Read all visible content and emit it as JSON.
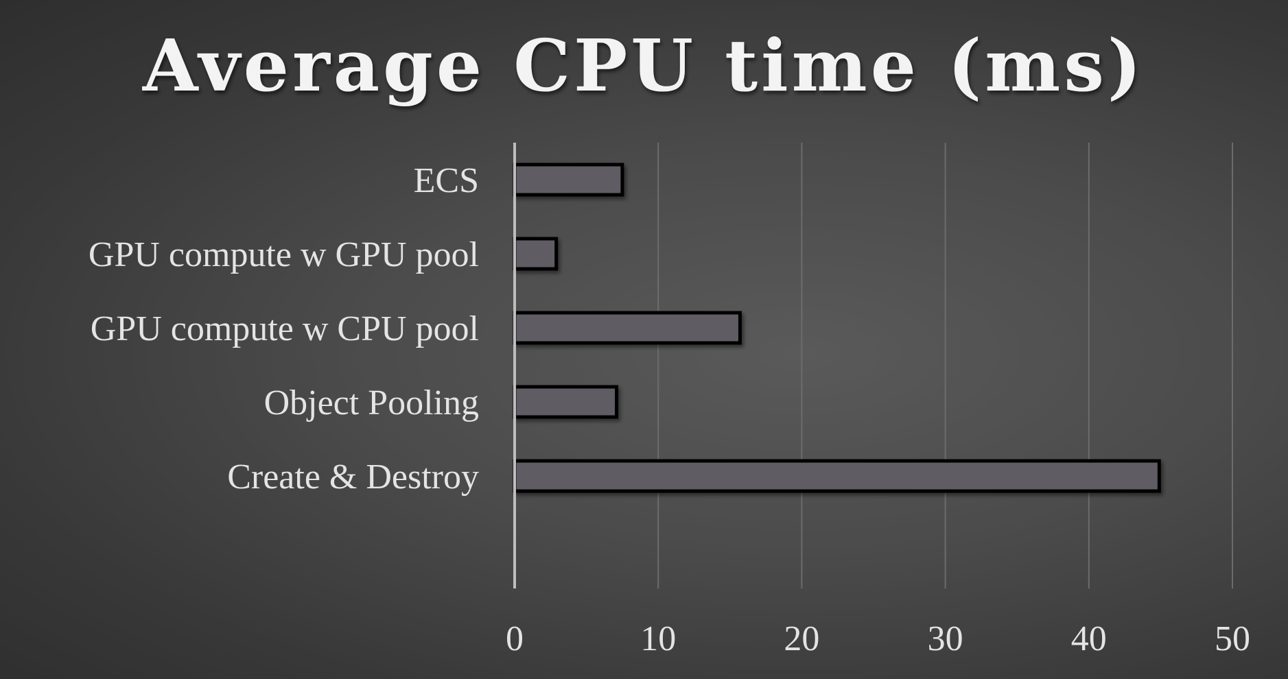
{
  "chart_data": {
    "type": "bar",
    "orientation": "horizontal",
    "title": "Average CPU time (ms)",
    "xlabel": "",
    "ylabel": "",
    "categories": [
      "ECS",
      "GPU compute w GPU pool",
      "GPU compute w CPU pool",
      "Object Pooling",
      "Create & Destroy"
    ],
    "values": [
      7.5,
      2.9,
      15.7,
      7.1,
      44.9
    ],
    "xlim": [
      0,
      50
    ],
    "xticks": [
      "0",
      "10",
      "20",
      "30",
      "40",
      "50"
    ],
    "grid": "vertical",
    "legend": "none",
    "colors": {
      "bar_fill": "#5e5d63",
      "bar_stroke": "#000000",
      "gridline": "#6c6c6c",
      "axis_line": "#bdbdbd",
      "text": "#e4e4e4",
      "title": "#f3f3f3"
    }
  }
}
